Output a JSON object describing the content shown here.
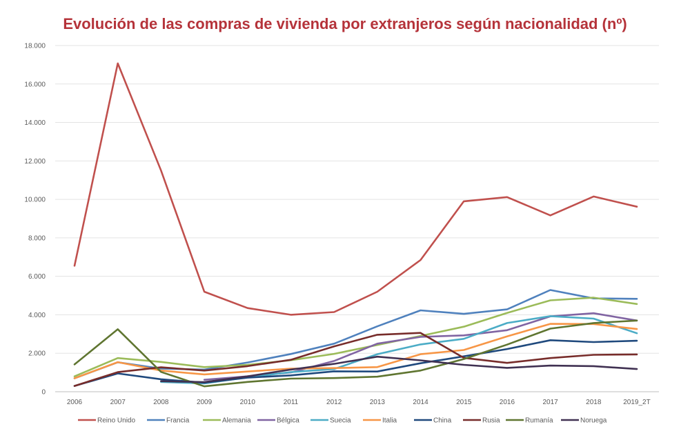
{
  "chart_data": {
    "type": "line",
    "title": "Evolución de las compras de vivienda por extranjeros según nacionalidad (nº)",
    "title_color": "#B5333A",
    "xlabel": "",
    "ylabel": "",
    "categories": [
      "2006",
      "2007",
      "2008",
      "2009",
      "2010",
      "2011",
      "2012",
      "2013",
      "2014",
      "2015",
      "2016",
      "2017",
      "2018",
      "2019_2T"
    ],
    "ylim": [
      0,
      18000
    ],
    "yticks": [
      0,
      2000,
      4000,
      6000,
      8000,
      10000,
      12000,
      14000,
      16000,
      18000
    ],
    "ytick_labels": [
      "0",
      "2.000",
      "4.000",
      "6.000",
      "8.000",
      "10.000",
      "12.000",
      "14.000",
      "16.000",
      "18.000"
    ],
    "grid": true,
    "legend_position": "bottom",
    "series": [
      {
        "name": "Reino Unido",
        "color": "#C0504D",
        "values": [
          6550,
          17070,
          11500,
          5200,
          4350,
          4000,
          4140,
          5200,
          6850,
          9900,
          10120,
          9170,
          10150,
          9620
        ]
      },
      {
        "name": "Francia",
        "color": "#4F81BD",
        "values": [
          700,
          1530,
          1200,
          1150,
          1520,
          1960,
          2500,
          3400,
          4230,
          4050,
          4280,
          5290,
          4850,
          4830
        ]
      },
      {
        "name": "Alemania",
        "color": "#9BBB59",
        "values": [
          800,
          1750,
          1550,
          1280,
          1400,
          1640,
          1970,
          2430,
          2900,
          3380,
          4100,
          4750,
          4890,
          4560
        ]
      },
      {
        "name": "Bélgica",
        "color": "#8064A2",
        "values": [
          null,
          null,
          null,
          620,
          800,
          1000,
          1600,
          2500,
          2850,
          2930,
          3200,
          3920,
          4080,
          3700
        ]
      },
      {
        "name": "Suecia",
        "color": "#4BACC6",
        "values": [
          null,
          null,
          510,
          430,
          750,
          1020,
          1180,
          1950,
          2460,
          2750,
          3570,
          3930,
          3800,
          3040
        ]
      },
      {
        "name": "Italia",
        "color": "#F79646",
        "values": [
          700,
          1540,
          1100,
          900,
          1050,
          1200,
          1230,
          1280,
          1950,
          2170,
          2880,
          3530,
          3520,
          3260
        ]
      },
      {
        "name": "China",
        "color": "#1F497D",
        "values": [
          300,
          950,
          650,
          470,
          730,
          850,
          1060,
          1050,
          1480,
          1840,
          2220,
          2680,
          2580,
          2650
        ]
      },
      {
        "name": "Rusia",
        "color": "#772C2A",
        "values": [
          300,
          1020,
          1270,
          1100,
          1330,
          1660,
          2360,
          2960,
          3060,
          1760,
          1500,
          1750,
          1920,
          1940
        ]
      },
      {
        "name": "Rumanía",
        "color": "#5F7530",
        "values": [
          1420,
          3250,
          1030,
          280,
          510,
          680,
          710,
          780,
          1100,
          1700,
          2450,
          3280,
          3570,
          3700
        ]
      },
      {
        "name": "Noruega",
        "color": "#403152",
        "values": [
          null,
          null,
          550,
          500,
          800,
          1150,
          1450,
          1820,
          1630,
          1400,
          1240,
          1360,
          1330,
          1180
        ]
      }
    ]
  }
}
